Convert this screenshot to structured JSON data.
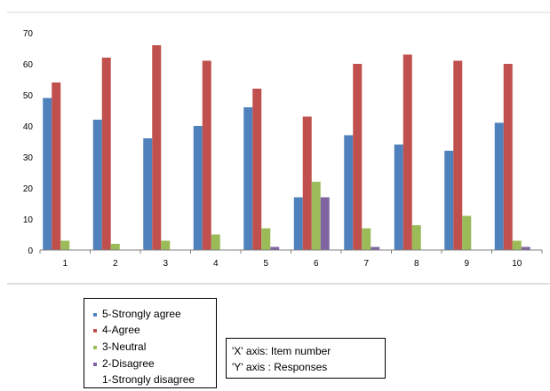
{
  "chart_data": {
    "type": "bar",
    "title": "",
    "xlabel": "",
    "ylabel": "",
    "categories": [
      "1",
      "2",
      "3",
      "4",
      "5",
      "6",
      "7",
      "8",
      "9",
      "10"
    ],
    "ylim": [
      0,
      70
    ],
    "yticks": [
      0,
      10,
      20,
      30,
      40,
      50,
      60,
      70
    ],
    "grid": false,
    "legend": "bottom-left",
    "series": [
      {
        "name": "5-Strongly agree",
        "color": "#4F81BD",
        "values": [
          49,
          42,
          36,
          40,
          46,
          17,
          37,
          34,
          32,
          41
        ]
      },
      {
        "name": "4-Agree",
        "color": "#C0504D",
        "values": [
          54,
          62,
          66,
          61,
          52,
          43,
          60,
          63,
          61,
          60
        ]
      },
      {
        "name": "3-Neutral",
        "color": "#9BBB59",
        "values": [
          3,
          2,
          3,
          5,
          7,
          22,
          7,
          8,
          11,
          3
        ]
      },
      {
        "name": "2-Disagree",
        "color": "#8064A2",
        "values": [
          0,
          0,
          0,
          0,
          1,
          17,
          1,
          0,
          0,
          1
        ]
      },
      {
        "name": "1-Strongly disagree",
        "color": "#4BACC6",
        "values": [
          0,
          0,
          0,
          0,
          0,
          0,
          0,
          0,
          0,
          0
        ]
      }
    ]
  },
  "axis_note": {
    "x_line": "'X' axis: Item number",
    "y_line": "'Y' axis : Responses"
  }
}
